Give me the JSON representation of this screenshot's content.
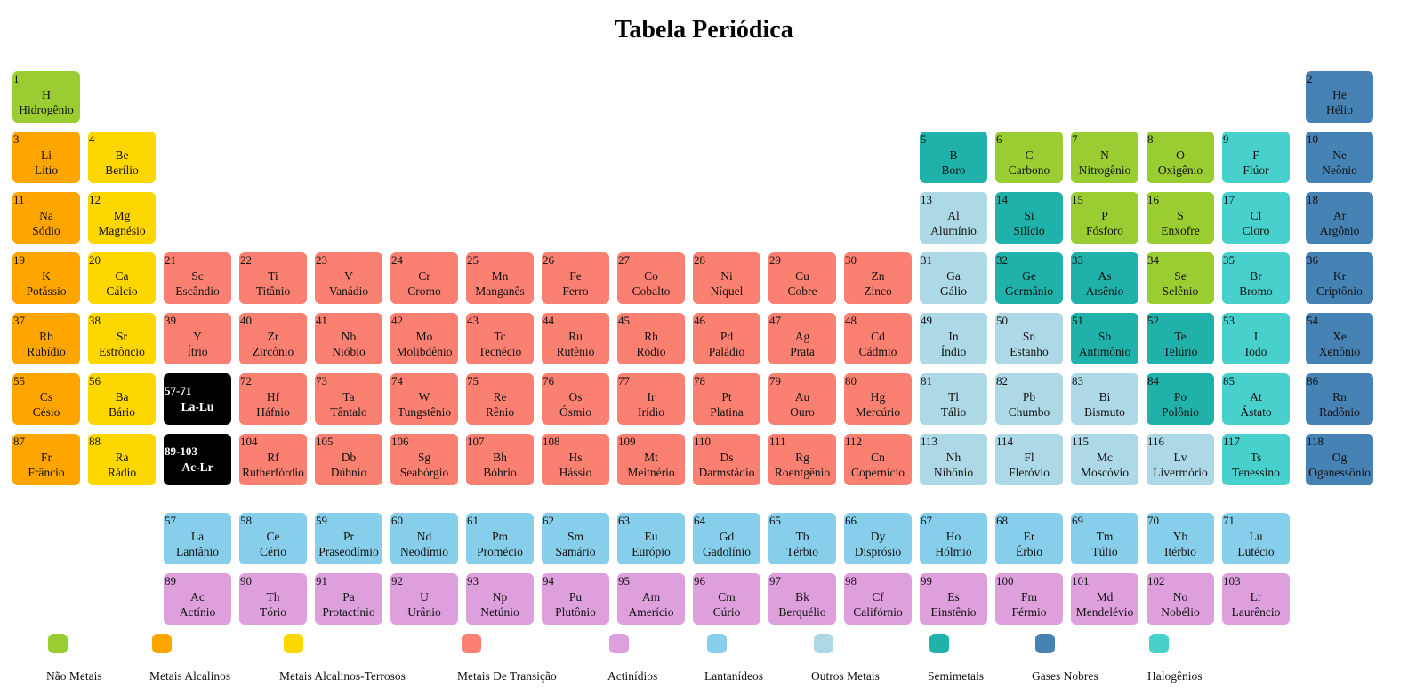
{
  "title": "Tabela Periódica",
  "colors": {
    "nonmetal": "#9acd32",
    "alkali": "#ffa500",
    "alkaline": "#ffd700",
    "transition": "#fa8072",
    "actinide": "#dda0dd",
    "lanthanide": "#87ceeb",
    "post": "#add8e6",
    "metalloid": "#20b2aa",
    "noble": "#4682b4",
    "halogen": "#48d1cc",
    "placeholder": "#000000"
  },
  "elements": [
    {
      "n": "1",
      "s": "H",
      "name": "Hidrogênio",
      "cat": "nonmetal"
    },
    {
      "n": "2",
      "s": "He",
      "name": "Hélio",
      "cat": "noble"
    },
    {
      "n": "3",
      "s": "Li",
      "name": "Lítio",
      "cat": "alkali"
    },
    {
      "n": "4",
      "s": "Be",
      "name": "Berílio",
      "cat": "alkaline"
    },
    {
      "n": "5",
      "s": "B",
      "name": "Boro",
      "cat": "metalloid"
    },
    {
      "n": "6",
      "s": "C",
      "name": "Carbono",
      "cat": "nonmetal"
    },
    {
      "n": "7",
      "s": "N",
      "name": "Nitrogênio",
      "cat": "nonmetal"
    },
    {
      "n": "8",
      "s": "O",
      "name": "Oxigênio",
      "cat": "nonmetal"
    },
    {
      "n": "9",
      "s": "F",
      "name": "Flúor",
      "cat": "halogen"
    },
    {
      "n": "10",
      "s": "Ne",
      "name": "Neônio",
      "cat": "noble"
    },
    {
      "n": "11",
      "s": "Na",
      "name": "Sódio",
      "cat": "alkali"
    },
    {
      "n": "12",
      "s": "Mg",
      "name": "Magnésio",
      "cat": "alkaline"
    },
    {
      "n": "13",
      "s": "Al",
      "name": "Alumínio",
      "cat": "post"
    },
    {
      "n": "14",
      "s": "Si",
      "name": "Silício",
      "cat": "metalloid"
    },
    {
      "n": "15",
      "s": "P",
      "name": "Fósforo",
      "cat": "nonmetal"
    },
    {
      "n": "16",
      "s": "S",
      "name": "Enxofre",
      "cat": "nonmetal"
    },
    {
      "n": "17",
      "s": "Cl",
      "name": "Cloro",
      "cat": "halogen"
    },
    {
      "n": "18",
      "s": "Ar",
      "name": "Argônio",
      "cat": "noble"
    },
    {
      "n": "19",
      "s": "K",
      "name": "Potássio",
      "cat": "alkali"
    },
    {
      "n": "20",
      "s": "Ca",
      "name": "Cálcio",
      "cat": "alkaline"
    },
    {
      "n": "21",
      "s": "Sc",
      "name": "Escândio",
      "cat": "transition"
    },
    {
      "n": "22",
      "s": "Ti",
      "name": "Titânio",
      "cat": "transition"
    },
    {
      "n": "23",
      "s": "V",
      "name": "Vanádio",
      "cat": "transition"
    },
    {
      "n": "24",
      "s": "Cr",
      "name": "Cromo",
      "cat": "transition"
    },
    {
      "n": "25",
      "s": "Mn",
      "name": "Manganês",
      "cat": "transition"
    },
    {
      "n": "26",
      "s": "Fe",
      "name": "Ferro",
      "cat": "transition"
    },
    {
      "n": "27",
      "s": "Co",
      "name": "Cobalto",
      "cat": "transition"
    },
    {
      "n": "28",
      "s": "Ni",
      "name": "Níquel",
      "cat": "transition"
    },
    {
      "n": "29",
      "s": "Cu",
      "name": "Cobre",
      "cat": "transition"
    },
    {
      "n": "30",
      "s": "Zn",
      "name": "Zinco",
      "cat": "transition"
    },
    {
      "n": "31",
      "s": "Ga",
      "name": "Gálio",
      "cat": "post"
    },
    {
      "n": "32",
      "s": "Ge",
      "name": "Germânio",
      "cat": "metalloid"
    },
    {
      "n": "33",
      "s": "As",
      "name": "Arsênio",
      "cat": "metalloid"
    },
    {
      "n": "34",
      "s": "Se",
      "name": "Selênio",
      "cat": "nonmetal"
    },
    {
      "n": "35",
      "s": "Br",
      "name": "Bromo",
      "cat": "halogen"
    },
    {
      "n": "36",
      "s": "Kr",
      "name": "Criptônio",
      "cat": "noble"
    },
    {
      "n": "37",
      "s": "Rb",
      "name": "Rubídio",
      "cat": "alkali"
    },
    {
      "n": "38",
      "s": "Sr",
      "name": "Estrôncio",
      "cat": "alkaline"
    },
    {
      "n": "39",
      "s": "Y",
      "name": "Ítrio",
      "cat": "transition"
    },
    {
      "n": "40",
      "s": "Zr",
      "name": "Zircônio",
      "cat": "transition"
    },
    {
      "n": "41",
      "s": "Nb",
      "name": "Nióbio",
      "cat": "transition"
    },
    {
      "n": "42",
      "s": "Mo",
      "name": "Molibdênio",
      "cat": "transition"
    },
    {
      "n": "43",
      "s": "Tc",
      "name": "Tecnécio",
      "cat": "transition"
    },
    {
      "n": "44",
      "s": "Ru",
      "name": "Rutênio",
      "cat": "transition"
    },
    {
      "n": "45",
      "s": "Rh",
      "name": "Ródio",
      "cat": "transition"
    },
    {
      "n": "46",
      "s": "Pd",
      "name": "Paládio",
      "cat": "transition"
    },
    {
      "n": "47",
      "s": "Ag",
      "name": "Prata",
      "cat": "transition"
    },
    {
      "n": "48",
      "s": "Cd",
      "name": "Cádmio",
      "cat": "transition"
    },
    {
      "n": "49",
      "s": "In",
      "name": "Índio",
      "cat": "post"
    },
    {
      "n": "50",
      "s": "Sn",
      "name": "Estanho",
      "cat": "post"
    },
    {
      "n": "51",
      "s": "Sb",
      "name": "Antimônio",
      "cat": "metalloid"
    },
    {
      "n": "52",
      "s": "Te",
      "name": "Telúrio",
      "cat": "metalloid"
    },
    {
      "n": "53",
      "s": "I",
      "name": "Iodo",
      "cat": "halogen"
    },
    {
      "n": "54",
      "s": "Xe",
      "name": "Xenônio",
      "cat": "noble"
    },
    {
      "n": "55",
      "s": "Cs",
      "name": "Césio",
      "cat": "alkali"
    },
    {
      "n": "56",
      "s": "Ba",
      "name": "Bário",
      "cat": "alkaline"
    },
    {
      "n": "57-71",
      "s": "La-Lu",
      "name": "",
      "cat": "placeholder"
    },
    {
      "n": "72",
      "s": "Hf",
      "name": "Háfnio",
      "cat": "transition"
    },
    {
      "n": "73",
      "s": "Ta",
      "name": "Tântalo",
      "cat": "transition"
    },
    {
      "n": "74",
      "s": "W",
      "name": "Tungstênio",
      "cat": "transition"
    },
    {
      "n": "75",
      "s": "Re",
      "name": "Rênio",
      "cat": "transition"
    },
    {
      "n": "76",
      "s": "Os",
      "name": "Ósmio",
      "cat": "transition"
    },
    {
      "n": "77",
      "s": "Ir",
      "name": "Irídio",
      "cat": "transition"
    },
    {
      "n": "78",
      "s": "Pt",
      "name": "Platina",
      "cat": "transition"
    },
    {
      "n": "79",
      "s": "Au",
      "name": "Ouro",
      "cat": "transition"
    },
    {
      "n": "80",
      "s": "Hg",
      "name": "Mercúrio",
      "cat": "transition"
    },
    {
      "n": "81",
      "s": "Tl",
      "name": "Tálio",
      "cat": "post"
    },
    {
      "n": "82",
      "s": "Pb",
      "name": "Chumbo",
      "cat": "post"
    },
    {
      "n": "83",
      "s": "Bi",
      "name": "Bismuto",
      "cat": "post"
    },
    {
      "n": "84",
      "s": "Po",
      "name": "Polônio",
      "cat": "metalloid"
    },
    {
      "n": "85",
      "s": "At",
      "name": "Ástato",
      "cat": "halogen"
    },
    {
      "n": "86",
      "s": "Rn",
      "name": "Radônio",
      "cat": "noble"
    },
    {
      "n": "87",
      "s": "Fr",
      "name": "Frâncio",
      "cat": "alkali"
    },
    {
      "n": "88",
      "s": "Ra",
      "name": "Rádio",
      "cat": "alkaline"
    },
    {
      "n": "89-103",
      "s": "Ac-Lr",
      "name": "",
      "cat": "placeholder"
    },
    {
      "n": "104",
      "s": "Rf",
      "name": "Rutherfórdio",
      "cat": "transition"
    },
    {
      "n": "105",
      "s": "Db",
      "name": "Dúbnio",
      "cat": "transition"
    },
    {
      "n": "106",
      "s": "Sg",
      "name": "Seabórgio",
      "cat": "transition"
    },
    {
      "n": "107",
      "s": "Bh",
      "name": "Bóhrio",
      "cat": "transition"
    },
    {
      "n": "108",
      "s": "Hs",
      "name": "Hássio",
      "cat": "transition"
    },
    {
      "n": "109",
      "s": "Mt",
      "name": "Meitnério",
      "cat": "transition"
    },
    {
      "n": "110",
      "s": "Ds",
      "name": "Darmstádio",
      "cat": "transition"
    },
    {
      "n": "111",
      "s": "Rg",
      "name": "Roentgênio",
      "cat": "transition"
    },
    {
      "n": "112",
      "s": "Cn",
      "name": "Copernício",
      "cat": "transition"
    },
    {
      "n": "113",
      "s": "Nh",
      "name": "Nihônio",
      "cat": "post"
    },
    {
      "n": "114",
      "s": "Fl",
      "name": "Fleróvio",
      "cat": "post"
    },
    {
      "n": "115",
      "s": "Mc",
      "name": "Moscóvio",
      "cat": "post"
    },
    {
      "n": "116",
      "s": "Lv",
      "name": "Livermório",
      "cat": "post"
    },
    {
      "n": "117",
      "s": "Ts",
      "name": "Tenessino",
      "cat": "halogen"
    },
    {
      "n": "118",
      "s": "Og",
      "name": "Oganessônio",
      "cat": "noble"
    },
    {
      "n": "57",
      "s": "La",
      "name": "Lantânio",
      "cat": "lanthanide"
    },
    {
      "n": "58",
      "s": "Ce",
      "name": "Cério",
      "cat": "lanthanide"
    },
    {
      "n": "59",
      "s": "Pr",
      "name": "Praseodímio",
      "cat": "lanthanide"
    },
    {
      "n": "60",
      "s": "Nd",
      "name": "Neodímio",
      "cat": "lanthanide"
    },
    {
      "n": "61",
      "s": "Pm",
      "name": "Promécio",
      "cat": "lanthanide"
    },
    {
      "n": "62",
      "s": "Sm",
      "name": "Samário",
      "cat": "lanthanide"
    },
    {
      "n": "63",
      "s": "Eu",
      "name": "Európio",
      "cat": "lanthanide"
    },
    {
      "n": "64",
      "s": "Gd",
      "name": "Gadolínio",
      "cat": "lanthanide"
    },
    {
      "n": "65",
      "s": "Tb",
      "name": "Térbio",
      "cat": "lanthanide"
    },
    {
      "n": "66",
      "s": "Dy",
      "name": "Disprósio",
      "cat": "lanthanide"
    },
    {
      "n": "67",
      "s": "Ho",
      "name": "Hólmio",
      "cat": "lanthanide"
    },
    {
      "n": "68",
      "s": "Er",
      "name": "Érbio",
      "cat": "lanthanide"
    },
    {
      "n": "69",
      "s": "Tm",
      "name": "Túlio",
      "cat": "lanthanide"
    },
    {
      "n": "70",
      "s": "Yb",
      "name": "Itérbio",
      "cat": "lanthanide"
    },
    {
      "n": "71",
      "s": "Lu",
      "name": "Lutécio",
      "cat": "lanthanide"
    },
    {
      "n": "89",
      "s": "Ac",
      "name": "Actínio",
      "cat": "actinide"
    },
    {
      "n": "90",
      "s": "Th",
      "name": "Tório",
      "cat": "actinide"
    },
    {
      "n": "91",
      "s": "Pa",
      "name": "Protactínio",
      "cat": "actinide"
    },
    {
      "n": "92",
      "s": "U",
      "name": "Urânio",
      "cat": "actinide"
    },
    {
      "n": "93",
      "s": "Np",
      "name": "Netúnio",
      "cat": "actinide"
    },
    {
      "n": "94",
      "s": "Pu",
      "name": "Plutônio",
      "cat": "actinide"
    },
    {
      "n": "95",
      "s": "Am",
      "name": "Amerício",
      "cat": "actinide"
    },
    {
      "n": "96",
      "s": "Cm",
      "name": "Cúrio",
      "cat": "actinide"
    },
    {
      "n": "97",
      "s": "Bk",
      "name": "Berquélio",
      "cat": "actinide"
    },
    {
      "n": "98",
      "s": "Cf",
      "name": "Califórnio",
      "cat": "actinide"
    },
    {
      "n": "99",
      "s": "Es",
      "name": "Einstênio",
      "cat": "actinide"
    },
    {
      "n": "100",
      "s": "Fm",
      "name": "Férmio",
      "cat": "actinide"
    },
    {
      "n": "101",
      "s": "Md",
      "name": "Mendelévio",
      "cat": "actinide"
    },
    {
      "n": "102",
      "s": "No",
      "name": "Nobélio",
      "cat": "actinide"
    },
    {
      "n": "103",
      "s": "Lr",
      "name": "Laurêncio",
      "cat": "actinide"
    }
  ],
  "legend": [
    {
      "label": "Não Metais",
      "cat": "nonmetal"
    },
    {
      "label": "Metais Alcalinos",
      "cat": "alkali"
    },
    {
      "label": "Metais Alcalinos-Terrosos",
      "cat": "alkaline"
    },
    {
      "label": "Metais De Transição",
      "cat": "transition"
    },
    {
      "label": "Actinídios",
      "cat": "actinide"
    },
    {
      "label": "Lantanídeos",
      "cat": "lanthanide"
    },
    {
      "label": "Outros Metais",
      "cat": "post"
    },
    {
      "label": "Semimetais",
      "cat": "metalloid"
    },
    {
      "label": "Gases Nobres",
      "cat": "noble"
    },
    {
      "label": "Halogênios",
      "cat": "halogen"
    }
  ]
}
